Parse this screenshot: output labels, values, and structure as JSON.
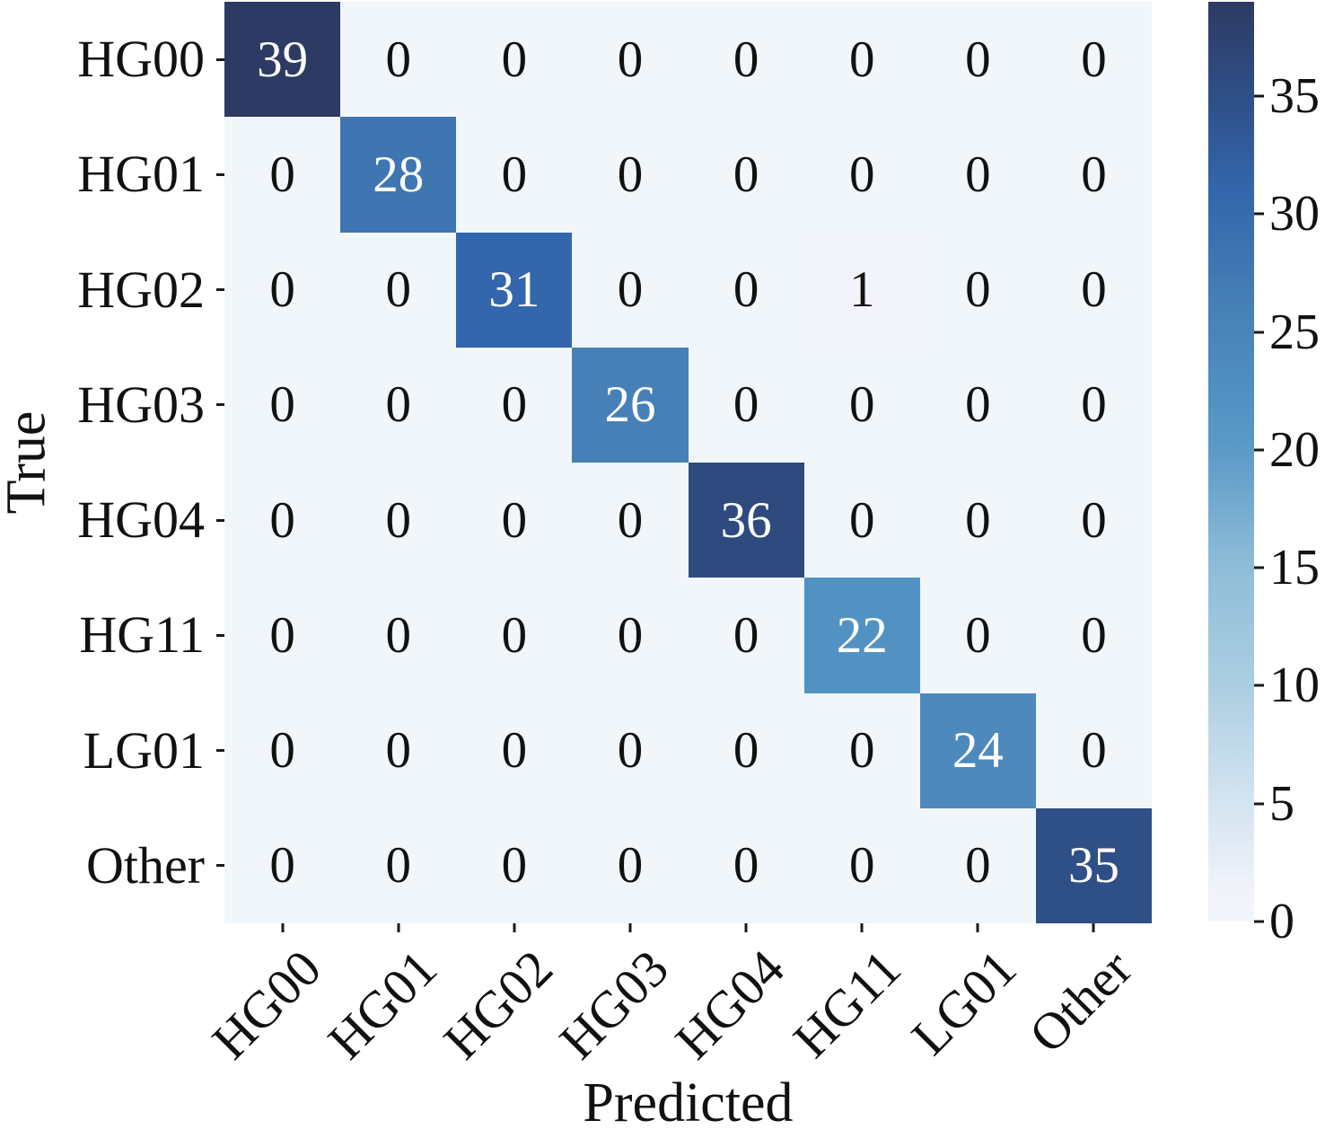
{
  "chart_data": {
    "type": "heatmap",
    "title": "",
    "xlabel": "Predicted",
    "ylabel": "True",
    "categories": [
      "HG00",
      "HG01",
      "HG02",
      "HG03",
      "HG04",
      "HG11",
      "LG01",
      "Other"
    ],
    "matrix": [
      [
        39,
        0,
        0,
        0,
        0,
        0,
        0,
        0
      ],
      [
        0,
        28,
        0,
        0,
        0,
        0,
        0,
        0
      ],
      [
        0,
        0,
        31,
        0,
        0,
        1,
        0,
        0
      ],
      [
        0,
        0,
        0,
        26,
        0,
        0,
        0,
        0
      ],
      [
        0,
        0,
        0,
        0,
        36,
        0,
        0,
        0
      ],
      [
        0,
        0,
        0,
        0,
        0,
        22,
        0,
        0
      ],
      [
        0,
        0,
        0,
        0,
        0,
        0,
        24,
        0
      ],
      [
        0,
        0,
        0,
        0,
        0,
        0,
        0,
        35
      ]
    ],
    "colorbar": {
      "vmin": 0,
      "vmax": 39,
      "ticks": [
        0,
        5,
        10,
        15,
        20,
        25,
        30,
        35
      ],
      "position": "right"
    },
    "grid": false,
    "style": {
      "color_anchors": [
        [
          0,
          "#f0f6fa"
        ],
        [
          1,
          "#f3f4fb"
        ],
        [
          5,
          "#d4e4f1"
        ],
        [
          10,
          "#accee2"
        ],
        [
          15,
          "#8fbdd8"
        ],
        [
          20,
          "#5c9ac7"
        ],
        [
          22,
          "#5292c3"
        ],
        [
          26,
          "#4780b6"
        ],
        [
          31,
          "#3366ac"
        ],
        [
          35,
          "#2f4f87"
        ],
        [
          39,
          "#2d3a63"
        ]
      ],
      "light_text": "#ffffff",
      "dark_text": "#111111",
      "light_text_threshold": 15,
      "tick_color": "#1a1a1a"
    }
  }
}
